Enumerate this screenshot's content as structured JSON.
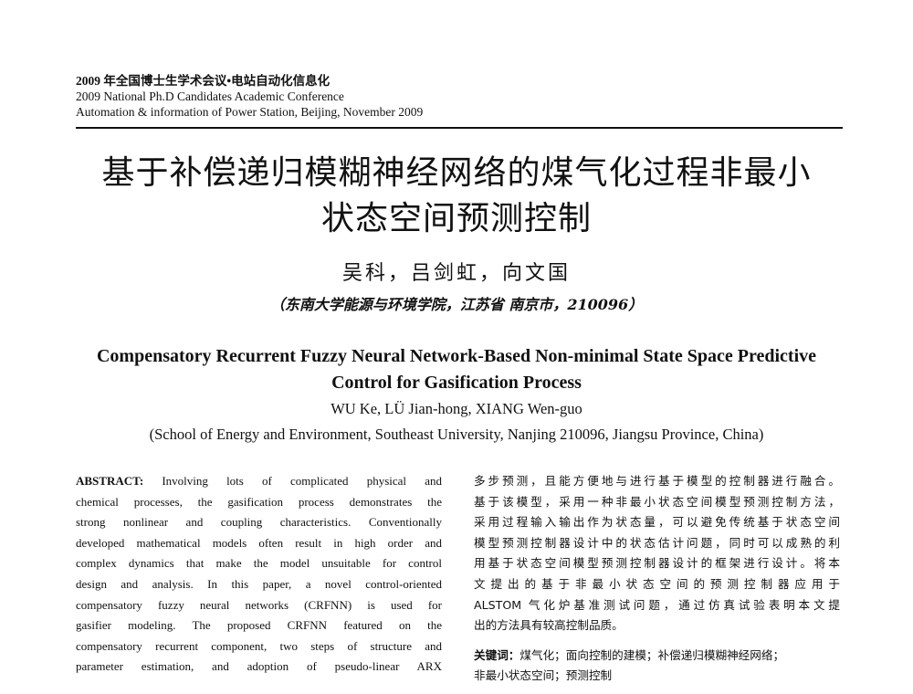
{
  "header": {
    "lines": [
      "2009 年全国博士生学术会议•电站自动化信息化",
      "2009 National Ph.D Candidates Academic Conference",
      "Automation & information of Power Station, Beijing, November 2009"
    ]
  },
  "title_cn": {
    "lines": [
      "基于补偿递归模糊神经网络的煤气化过程非最小",
      "状态空间预测控制"
    ]
  },
  "authors_cn": "吴科，吕剑虹，向文国",
  "affiliation_cn": "（东南大学能源与环境学院，江苏省 南京市，210096）",
  "title_en": {
    "lines": [
      "Compensatory Recurrent Fuzzy Neural Network-Based Non-minimal State Space Predictive",
      "Control for Gasification Process"
    ]
  },
  "authors_en": "WU Ke, LÜ Jian-hong, XIANG Wen-guo",
  "affiliation_en": "(School of Energy and Environment, Southeast University, Nanjing 210096, Jiangsu Province, China)",
  "abstract": {
    "label": "ABSTRACT:",
    "lines": [
      "Involving lots of complicated physical and",
      "chemical processes, the gasification process demonstrates the",
      "strong nonlinear and coupling characteristics. Conventionally",
      "developed mathematical models often result in high order and",
      "complex dynamics that make the model unsuitable for control",
      "design and analysis. In this paper, a novel control-oriented",
      "compensatory fuzzy neural networks (CRFNN) is used for",
      "gasifier modeling. The proposed CRFNN featured on the",
      "compensatory recurrent component, two steps of structure and",
      "parameter estimation, and adoption of pseudo-linear ARX"
    ]
  },
  "abstract_cn": {
    "lines": [
      "多步预测，且能方便地与进行基于模型的控制器进行融合。",
      "基于该模型，采用一种非最小状态空间模型预测控制方法，",
      "采用过程输入输出作为状态量，可以避免传统基于状态空间",
      "模型预测控制器设计中的状态估计问题，同时可以成熟的利",
      "用基于状态空间模型预测控制器设计的框架进行设计。将本",
      "文提出的基于非最小状态空间的预测控制器应用于",
      "ALSTOM 气化炉基准测试问题，通过仿真试验表明本文提",
      "出的方法具有较高控制品质。"
    ]
  },
  "keywords_cn": {
    "label": "关键词：",
    "lines": [
      "煤气化；面向控制的建模；补偿递归模糊神经网络；",
      "非最小状态空间；预测控制"
    ]
  }
}
